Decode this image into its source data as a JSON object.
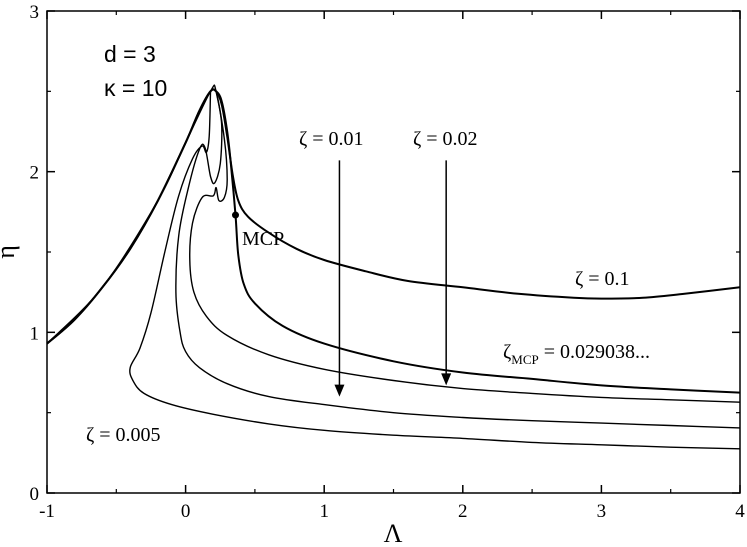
{
  "chart_data": {
    "type": "line",
    "xlabel": "Λ",
    "ylabel": "η",
    "xlim": [
      -1,
      4
    ],
    "ylim": [
      0,
      3
    ],
    "grid": false,
    "xticks": [
      -1,
      0,
      1,
      2,
      3,
      4
    ],
    "xtick_labels": [
      "-1",
      "0",
      "1",
      "2",
      "3",
      "4"
    ],
    "yticks": [
      0,
      1,
      2,
      3
    ],
    "ytick_labels": [
      "0",
      "1",
      "2",
      "3"
    ],
    "params": [
      "d = 3",
      "κ = 10"
    ],
    "annotations": {
      "z01": "ζ = 0.01",
      "z02": "ζ = 0.02",
      "z1": "ζ = 0.1",
      "zmcp_sym": "ζ",
      "zmcp_sub": "MCP",
      "zmcp_val": " = 0.029038...",
      "z005": "ζ = 0.005",
      "mcp": "MCP"
    },
    "mcp_point": {
      "x": 0.36,
      "y": 1.73
    },
    "series": [
      {
        "name": "ζ = 0.1",
        "values": [
          [
            -1,
            0.93
          ],
          [
            -0.8,
            1.08
          ],
          [
            -0.6,
            1.28
          ],
          [
            -0.4,
            1.52
          ],
          [
            -0.2,
            1.82
          ],
          [
            0,
            2.18
          ],
          [
            0.1,
            2.38
          ],
          [
            0.18,
            2.5
          ],
          [
            0.22,
            2.5
          ],
          [
            0.26,
            2.42
          ],
          [
            0.3,
            2.22
          ],
          [
            0.34,
            1.98
          ],
          [
            0.38,
            1.82
          ],
          [
            0.45,
            1.72
          ],
          [
            0.6,
            1.62
          ],
          [
            0.8,
            1.52
          ],
          [
            1,
            1.45
          ],
          [
            1.3,
            1.38
          ],
          [
            1.6,
            1.32
          ],
          [
            2,
            1.28
          ],
          [
            2.4,
            1.24
          ],
          [
            2.8,
            1.215
          ],
          [
            3.0,
            1.21
          ],
          [
            3.3,
            1.215
          ],
          [
            3.6,
            1.24
          ],
          [
            4,
            1.28
          ]
        ]
      },
      {
        "name": "ζ = 0.029038",
        "values": [
          [
            -1,
            0.93
          ],
          [
            -0.8,
            1.08
          ],
          [
            -0.6,
            1.28
          ],
          [
            -0.4,
            1.52
          ],
          [
            -0.2,
            1.82
          ],
          [
            0,
            2.18
          ],
          [
            0.1,
            2.38
          ],
          [
            0.18,
            2.5
          ],
          [
            0.22,
            2.5
          ],
          [
            0.26,
            2.44
          ],
          [
            0.3,
            2.25
          ],
          [
            0.33,
            2.02
          ],
          [
            0.36,
            1.73
          ],
          [
            0.38,
            1.48
          ],
          [
            0.42,
            1.3
          ],
          [
            0.5,
            1.18
          ],
          [
            0.7,
            1.04
          ],
          [
            1,
            0.93
          ],
          [
            1.5,
            0.82
          ],
          [
            2,
            0.75
          ],
          [
            2.5,
            0.71
          ],
          [
            3,
            0.67
          ],
          [
            3.5,
            0.645
          ],
          [
            4,
            0.625
          ]
        ]
      },
      {
        "name": "ζ = 0.02",
        "values": [
          [
            -1,
            0.93
          ],
          [
            -0.6,
            1.28
          ],
          [
            -0.2,
            1.82
          ],
          [
            0,
            2.18
          ],
          [
            0.18,
            2.5
          ],
          [
            0.22,
            2.5
          ],
          [
            0.28,
            2.2
          ],
          [
            0.3,
            1.95
          ],
          [
            0.28,
            1.84
          ],
          [
            0.24,
            1.82
          ],
          [
            0.22,
            1.9
          ],
          [
            0.2,
            1.85
          ],
          [
            0.12,
            1.84
          ],
          [
            0.05,
            1.68
          ],
          [
            0.03,
            1.45
          ],
          [
            0.06,
            1.25
          ],
          [
            0.15,
            1.1
          ],
          [
            0.3,
            0.98
          ],
          [
            0.6,
            0.86
          ],
          [
            1,
            0.77
          ],
          [
            1.5,
            0.7
          ],
          [
            2,
            0.65
          ],
          [
            2.5,
            0.62
          ],
          [
            3,
            0.595
          ],
          [
            3.5,
            0.58
          ],
          [
            4,
            0.565
          ]
        ]
      },
      {
        "name": "ζ = 0.01",
        "values": [
          [
            0.22,
            2.5
          ],
          [
            0.26,
            2.3
          ],
          [
            0.25,
            2.05
          ],
          [
            0.21,
            1.93
          ],
          [
            0.18,
            1.97
          ],
          [
            0.14,
            2.15
          ],
          [
            0.1,
            2.14
          ],
          [
            0.02,
            1.9
          ],
          [
            -0.05,
            1.6
          ],
          [
            -0.07,
            1.25
          ],
          [
            -0.04,
            1.0
          ],
          [
            0,
            0.88
          ],
          [
            0.1,
            0.78
          ],
          [
            0.3,
            0.68
          ],
          [
            0.6,
            0.6
          ],
          [
            1,
            0.55
          ],
          [
            1.5,
            0.5
          ],
          [
            2,
            0.47
          ],
          [
            2.5,
            0.45
          ],
          [
            3,
            0.435
          ],
          [
            3.5,
            0.42
          ],
          [
            4,
            0.405
          ]
        ]
      },
      {
        "name": "ζ = 0.005",
        "values": [
          [
            0.18,
            2.5
          ],
          [
            0.17,
            2.22
          ],
          [
            0.15,
            2.12
          ],
          [
            0.12,
            2.16
          ],
          [
            0.05,
            2.08
          ],
          [
            -0.05,
            1.85
          ],
          [
            -0.15,
            1.5
          ],
          [
            -0.25,
            1.12
          ],
          [
            -0.33,
            0.9
          ],
          [
            -0.4,
            0.78
          ],
          [
            -0.38,
            0.7
          ],
          [
            -0.3,
            0.62
          ],
          [
            -0.1,
            0.55
          ],
          [
            0.2,
            0.49
          ],
          [
            0.6,
            0.43
          ],
          [
            1,
            0.39
          ],
          [
            1.5,
            0.36
          ],
          [
            2,
            0.34
          ],
          [
            2.5,
            0.315
          ],
          [
            3,
            0.3
          ],
          [
            3.5,
            0.285
          ],
          [
            4,
            0.275
          ]
        ]
      }
    ],
    "arrows": [
      {
        "name": "ζ = 0.01",
        "x": 1.11,
        "y_from": 2.07,
        "y_to": 0.6
      },
      {
        "name": "ζ = 0.02",
        "x": 1.88,
        "y_from": 2.07,
        "y_to": 0.67
      }
    ]
  }
}
